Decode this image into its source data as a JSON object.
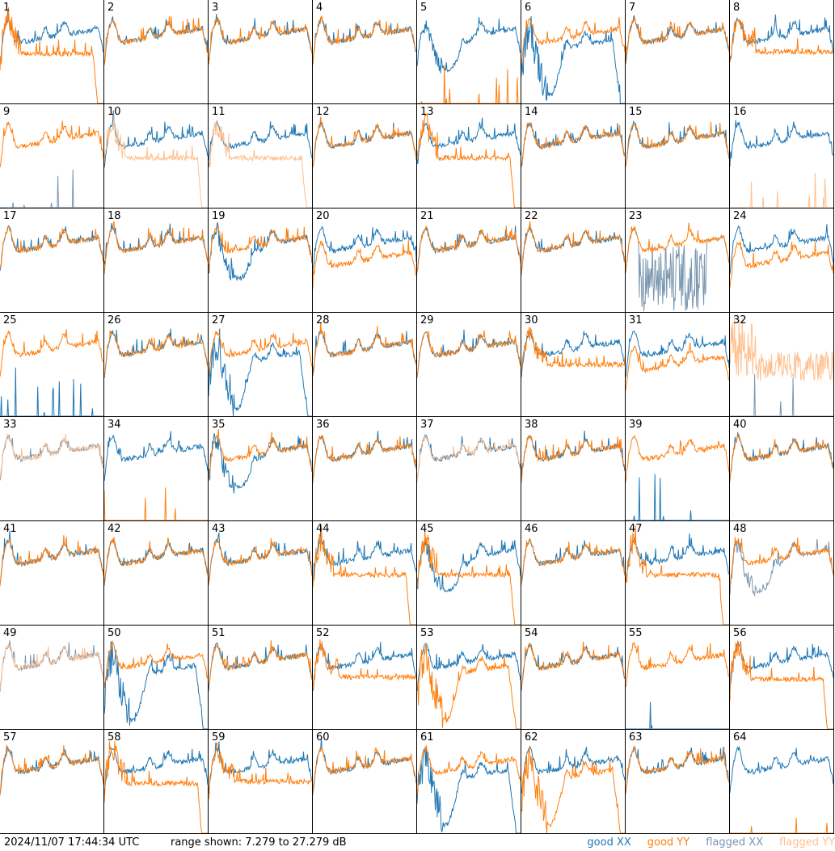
{
  "footer": {
    "timestamp": "2024/11/07 17:44:34 UTC",
    "range_text": "range shown: 7.279 to 27.279 dB"
  },
  "legend": [
    {
      "key": "good_xx",
      "label": "good XX",
      "color": "#1f77b4"
    },
    {
      "key": "good_yy",
      "label": "good YY",
      "color": "#ff7f0e"
    },
    {
      "key": "flagged_xx",
      "label": "flagged XX",
      "color": "#7a96b0"
    },
    {
      "key": "flagged_yy",
      "label": "flagged YY",
      "color": "#ffc08f"
    }
  ],
  "colors": {
    "good_xx": "#1f77b4",
    "good_yy": "#ff7f0e",
    "flagged_xx": "#7a96b0",
    "flagged_yy": "#ffc08f"
  },
  "chart_data": {
    "type": "line",
    "layout": "small-multiples",
    "rows": 8,
    "cols": 8,
    "ylim": [
      7.279,
      27.279
    ],
    "unit": "dB",
    "panels": [
      {
        "id": "1",
        "xx": "good",
        "yy": "good",
        "xx_shape": "normal",
        "yy_shape": "rolloff"
      },
      {
        "id": "2",
        "xx": "good",
        "yy": "good",
        "xx_shape": "normal",
        "yy_shape": "normal"
      },
      {
        "id": "3",
        "xx": "good",
        "yy": "good",
        "xx_shape": "normal",
        "yy_shape": "normal"
      },
      {
        "id": "4",
        "xx": "good",
        "yy": "good",
        "xx_shape": "normal",
        "yy_shape": "normal"
      },
      {
        "id": "5",
        "xx": "good",
        "yy": "good",
        "xx_shape": "deep",
        "yy_shape": "dead"
      },
      {
        "id": "6",
        "xx": "good",
        "yy": "good",
        "xx_shape": "deep_rolloff",
        "yy_shape": "normal"
      },
      {
        "id": "7",
        "xx": "good",
        "yy": "good",
        "xx_shape": "normal",
        "yy_shape": "normal"
      },
      {
        "id": "8",
        "xx": "good",
        "yy": "good",
        "xx_shape": "normal",
        "yy_shape": "flat"
      },
      {
        "id": "9",
        "xx": "flagged",
        "yy": "good",
        "xx_shape": "dead",
        "yy_shape": "normal"
      },
      {
        "id": "10",
        "xx": "good",
        "yy": "flagged",
        "xx_shape": "normal",
        "yy_shape": "rolloff"
      },
      {
        "id": "11",
        "xx": "good",
        "yy": "flagged",
        "xx_shape": "normal",
        "yy_shape": "rolloff"
      },
      {
        "id": "12",
        "xx": "good",
        "yy": "good",
        "xx_shape": "normal",
        "yy_shape": "normal"
      },
      {
        "id": "13",
        "xx": "good",
        "yy": "good",
        "xx_shape": "normal",
        "yy_shape": "rolloff"
      },
      {
        "id": "14",
        "xx": "good",
        "yy": "good",
        "xx_shape": "normal",
        "yy_shape": "normal"
      },
      {
        "id": "15",
        "xx": "good",
        "yy": "good",
        "xx_shape": "normal",
        "yy_shape": "normal"
      },
      {
        "id": "16",
        "xx": "good",
        "yy": "flagged",
        "xx_shape": "normal",
        "yy_shape": "dead"
      },
      {
        "id": "17",
        "xx": "good",
        "yy": "good",
        "xx_shape": "normal",
        "yy_shape": "normal"
      },
      {
        "id": "18",
        "xx": "good",
        "yy": "good",
        "xx_shape": "normal",
        "yy_shape": "normal"
      },
      {
        "id": "19",
        "xx": "good",
        "yy": "good",
        "xx_shape": "deep",
        "yy_shape": "normal"
      },
      {
        "id": "20",
        "xx": "good",
        "yy": "good",
        "xx_shape": "normal",
        "yy_shape": "low"
      },
      {
        "id": "21",
        "xx": "good",
        "yy": "good",
        "xx_shape": "normal",
        "yy_shape": "normal"
      },
      {
        "id": "22",
        "xx": "good",
        "yy": "good",
        "xx_shape": "normal",
        "yy_shape": "normal"
      },
      {
        "id": "23",
        "xx": "flagged",
        "yy": "good",
        "xx_shape": "noise",
        "yy_shape": "normal"
      },
      {
        "id": "24",
        "xx": "good",
        "yy": "good",
        "xx_shape": "normal",
        "yy_shape": "low"
      },
      {
        "id": "25",
        "xx": "good",
        "yy": "good",
        "xx_shape": "dead",
        "yy_shape": "normal"
      },
      {
        "id": "26",
        "xx": "good",
        "yy": "good",
        "xx_shape": "normal",
        "yy_shape": "normal"
      },
      {
        "id": "27",
        "xx": "good",
        "yy": "good",
        "xx_shape": "deep_rolloff",
        "yy_shape": "normal"
      },
      {
        "id": "28",
        "xx": "good",
        "yy": "good",
        "xx_shape": "normal",
        "yy_shape": "normal"
      },
      {
        "id": "29",
        "xx": "good",
        "yy": "good",
        "xx_shape": "normal",
        "yy_shape": "normal"
      },
      {
        "id": "30",
        "xx": "good",
        "yy": "good",
        "xx_shape": "normal",
        "yy_shape": "flat"
      },
      {
        "id": "31",
        "xx": "good",
        "yy": "good",
        "xx_shape": "normal",
        "yy_shape": "low"
      },
      {
        "id": "32",
        "xx": "flagged",
        "yy": "flagged",
        "xx_shape": "dead",
        "yy_shape": "noise_high"
      },
      {
        "id": "33",
        "xx": "flagged",
        "yy": "flagged",
        "xx_shape": "normal",
        "yy_shape": "normal"
      },
      {
        "id": "34",
        "xx": "good",
        "yy": "good",
        "xx_shape": "normal",
        "yy_shape": "dead"
      },
      {
        "id": "35",
        "xx": "good",
        "yy": "good",
        "xx_shape": "deep",
        "yy_shape": "normal"
      },
      {
        "id": "36",
        "xx": "good",
        "yy": "good",
        "xx_shape": "normal",
        "yy_shape": "normal"
      },
      {
        "id": "37",
        "xx": "good",
        "yy": "flagged",
        "xx_shape": "normal",
        "yy_shape": "normal"
      },
      {
        "id": "38",
        "xx": "good",
        "yy": "good",
        "xx_shape": "normal",
        "yy_shape": "normal"
      },
      {
        "id": "39",
        "xx": "good",
        "yy": "good",
        "xx_shape": "dead",
        "yy_shape": "normal"
      },
      {
        "id": "40",
        "xx": "good",
        "yy": "good",
        "xx_shape": "normal",
        "yy_shape": "normal"
      },
      {
        "id": "41",
        "xx": "good",
        "yy": "good",
        "xx_shape": "normal",
        "yy_shape": "normal"
      },
      {
        "id": "42",
        "xx": "good",
        "yy": "good",
        "xx_shape": "normal",
        "yy_shape": "normal"
      },
      {
        "id": "43",
        "xx": "good",
        "yy": "good",
        "xx_shape": "normal",
        "yy_shape": "normal"
      },
      {
        "id": "44",
        "xx": "good",
        "yy": "good",
        "xx_shape": "normal",
        "yy_shape": "rolloff"
      },
      {
        "id": "45",
        "xx": "good",
        "yy": "good",
        "xx_shape": "deep",
        "yy_shape": "rolloff"
      },
      {
        "id": "46",
        "xx": "good",
        "yy": "good",
        "xx_shape": "normal",
        "yy_shape": "normal"
      },
      {
        "id": "47",
        "xx": "good",
        "yy": "good",
        "xx_shape": "normal",
        "yy_shape": "rolloff"
      },
      {
        "id": "48",
        "xx": "flagged",
        "yy": "good",
        "xx_shape": "deep",
        "yy_shape": "normal"
      },
      {
        "id": "49",
        "xx": "flagged",
        "yy": "flagged",
        "xx_shape": "normal",
        "yy_shape": "normal"
      },
      {
        "id": "50",
        "xx": "good",
        "yy": "good",
        "xx_shape": "deep_rolloff",
        "yy_shape": "normal"
      },
      {
        "id": "51",
        "xx": "good",
        "yy": "good",
        "xx_shape": "normal",
        "yy_shape": "normal"
      },
      {
        "id": "52",
        "xx": "good",
        "yy": "good",
        "xx_shape": "normal",
        "yy_shape": "flat"
      },
      {
        "id": "53",
        "xx": "good",
        "yy": "good",
        "xx_shape": "normal",
        "yy_shape": "deep_rolloff"
      },
      {
        "id": "54",
        "xx": "good",
        "yy": "good",
        "xx_shape": "normal",
        "yy_shape": "normal"
      },
      {
        "id": "55",
        "xx": "good",
        "yy": "good",
        "xx_shape": "dead",
        "yy_shape": "normal"
      },
      {
        "id": "56",
        "xx": "good",
        "yy": "good",
        "xx_shape": "normal",
        "yy_shape": "rolloff"
      },
      {
        "id": "57",
        "xx": "good",
        "yy": "good",
        "xx_shape": "normal",
        "yy_shape": "normal"
      },
      {
        "id": "58",
        "xx": "good",
        "yy": "good",
        "xx_shape": "normal",
        "yy_shape": "rolloff"
      },
      {
        "id": "59",
        "xx": "good",
        "yy": "good",
        "xx_shape": "normal",
        "yy_shape": "flat"
      },
      {
        "id": "60",
        "xx": "good",
        "yy": "good",
        "xx_shape": "normal",
        "yy_shape": "normal"
      },
      {
        "id": "61",
        "xx": "good",
        "yy": "good",
        "xx_shape": "deep_rolloff",
        "yy_shape": "normal"
      },
      {
        "id": "62",
        "xx": "good",
        "yy": "good",
        "xx_shape": "normal",
        "yy_shape": "deep_rolloff"
      },
      {
        "id": "63",
        "xx": "good",
        "yy": "good",
        "xx_shape": "normal",
        "yy_shape": "normal"
      },
      {
        "id": "64",
        "xx": "good",
        "yy": "good",
        "xx_shape": "normal",
        "yy_shape": "dead"
      }
    ]
  }
}
